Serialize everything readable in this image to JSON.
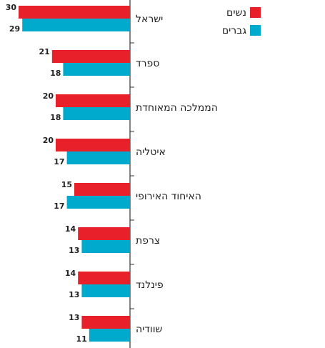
{
  "chart_data": {
    "type": "barh",
    "categories": [
      "ישראל",
      "ספרד",
      "הממלכה המאוחדת",
      "איטליה",
      "האיחוד האירופי",
      "צרפת",
      "פינלנד",
      "שוודיה"
    ],
    "series": [
      {
        "name": "נשים",
        "color": "#e8202a",
        "values": [
          30,
          21,
          20,
          20,
          15,
          14,
          14,
          13
        ]
      },
      {
        "name": "גברים",
        "color": "#00aacc",
        "values": [
          29,
          18,
          18,
          17,
          17,
          13,
          13,
          11
        ]
      }
    ],
    "xlim": [
      0,
      35
    ],
    "legend": "top-right"
  }
}
